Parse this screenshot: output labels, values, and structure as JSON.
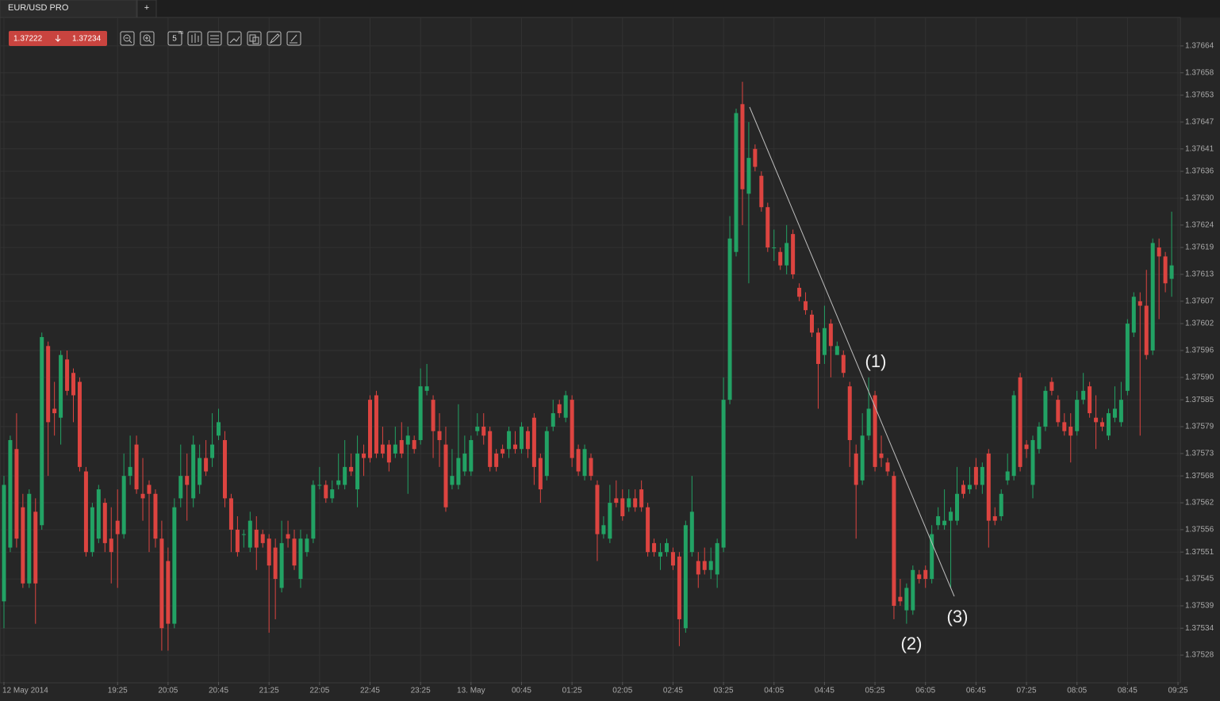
{
  "header": {
    "tab": "EUR/USD PRO",
    "new_tab": "+",
    "bid": "1.37222",
    "ask": "1.37234",
    "period_icon": "5",
    "period_unit": "m"
  },
  "chart_data": {
    "type": "candlestick",
    "up_color": "#22a264",
    "down_color": "#dc4440",
    "grid": true,
    "annotations": [
      "(1)",
      "(2)",
      "(3)"
    ],
    "ylim": [
      1.37522,
      1.3767
    ],
    "yticks": [
      1.37664,
      1.37658,
      1.37653,
      1.37647,
      1.37641,
      1.37636,
      {
        "value": 1.3763,
        "label": "1.37630"
      },
      1.37624,
      1.37619,
      1.37613,
      1.37607,
      1.37602,
      1.37596,
      {
        "value": 1.3759,
        "label": "1.37590"
      },
      1.37585,
      1.37579,
      1.37573,
      1.37568,
      1.37562,
      1.37556,
      1.37551,
      1.37545,
      1.37539,
      1.37534,
      1.37528
    ],
    "xlim": [
      -0.5,
      186.5
    ],
    "xticks": [
      {
        "value": 0,
        "label": "12 May 2014"
      },
      {
        "value": 18,
        "label": "19:25"
      },
      {
        "value": 26,
        "label": "20:05"
      },
      {
        "value": 34,
        "label": "20:45"
      },
      {
        "value": 42,
        "label": "21:25"
      },
      {
        "value": 50,
        "label": "22:05"
      },
      {
        "value": 58,
        "label": "22:45"
      },
      {
        "value": 66,
        "label": "23:25"
      },
      {
        "value": 74,
        "label": "13. May"
      },
      {
        "value": 82,
        "label": "00:45"
      },
      {
        "value": 90,
        "label": "01:25"
      },
      {
        "value": 98,
        "label": "02:05"
      },
      {
        "value": 106,
        "label": "02:45"
      },
      {
        "value": 114,
        "label": "03:25"
      },
      {
        "value": 122,
        "label": "04:05"
      },
      {
        "value": 130,
        "label": "04:45"
      },
      {
        "value": 138,
        "label": "05:25"
      },
      {
        "value": 146,
        "label": "06:05"
      },
      {
        "value": 154,
        "label": "06:45"
      },
      {
        "value": 162,
        "label": "07:25"
      },
      {
        "value": 170,
        "label": "08:05"
      },
      {
        "value": 178,
        "label": "08:45"
      },
      {
        "value": 186,
        "label": "09:25"
      }
    ],
    "ohlc": [
      [
        1.3754,
        1.37568,
        1.37534,
        1.37566
      ],
      [
        1.37552,
        1.37577,
        1.37551,
        1.37576
      ],
      [
        1.37574,
        1.37582,
        1.37552,
        1.37554
      ],
      [
        1.37561,
        1.37564,
        1.37543,
        1.37544
      ],
      [
        1.37544,
        1.37565,
        1.37543,
        1.37564
      ],
      [
        1.3756,
        1.37563,
        1.37535,
        1.37544
      ],
      [
        1.37557,
        1.376,
        1.37556,
        1.37599
      ],
      [
        1.37597,
        1.37598,
        1.37568,
        1.3758
      ],
      [
        1.37583,
        1.37589,
        1.37577,
        1.37582
      ],
      [
        1.37581,
        1.37596,
        1.37575,
        1.37595
      ],
      [
        1.37594,
        1.37596,
        1.37586,
        1.37587
      ],
      [
        1.37591,
        1.37592,
        1.3758,
        1.37586
      ],
      [
        1.37589,
        1.3759,
        1.37569,
        1.3757
      ],
      [
        1.37569,
        1.3757,
        1.3755,
        1.37551
      ],
      [
        1.37551,
        1.37562,
        1.3755,
        1.37561
      ],
      [
        1.37554,
        1.37566,
        1.37553,
        1.37565
      ],
      [
        1.37562,
        1.37563,
        1.37551,
        1.37553
      ],
      [
        1.37554,
        1.37561,
        1.37544,
        1.37551
      ],
      [
        1.37558,
        1.37565,
        1.37543,
        1.37555
      ],
      [
        1.37555,
        1.37573,
        1.37554,
        1.37568
      ],
      [
        1.37568,
        1.37577,
        1.37566,
        1.3757
      ],
      [
        1.37575,
        1.37577,
        1.37564,
        1.37565
      ],
      [
        1.37564,
        1.37572,
        1.37558,
        1.37563
      ],
      [
        1.37566,
        1.37567,
        1.37551,
        1.37564
      ],
      [
        1.37564,
        1.37565,
        1.37552,
        1.37554
      ],
      [
        1.37554,
        1.37558,
        1.37529,
        1.37534
      ],
      [
        1.37549,
        1.37552,
        1.37529,
        1.37535
      ],
      [
        1.37535,
        1.37563,
        1.37534,
        1.37561
      ],
      [
        1.37563,
        1.37575,
        1.37561,
        1.37568
      ],
      [
        1.37568,
        1.37573,
        1.37558,
        1.37566
      ],
      [
        1.37563,
        1.37577,
        1.37561,
        1.37575
      ],
      [
        1.37566,
        1.37575,
        1.37564,
        1.37572
      ],
      [
        1.37572,
        1.37576,
        1.37568,
        1.37569
      ],
      [
        1.37572,
        1.37582,
        1.3757,
        1.37575
      ],
      [
        1.37577,
        1.37583,
        1.37576,
        1.3758
      ],
      [
        1.37576,
        1.37578,
        1.37561,
        1.37563
      ],
      [
        1.37563,
        1.37564,
        1.37551,
        1.37556
      ],
      [
        1.37556,
        1.37559,
        1.3755,
        1.37551
      ],
      [
        1.37555,
        1.37556,
        1.37552,
        1.37555
      ],
      [
        1.37552,
        1.3756,
        1.37551,
        1.37558
      ],
      [
        1.37556,
        1.37559,
        1.37547,
        1.37552
      ],
      [
        1.37555,
        1.37556,
        1.37552,
        1.37553
      ],
      [
        1.37554,
        1.37555,
        1.37533,
        1.37548
      ],
      [
        1.37552,
        1.37554,
        1.37536,
        1.37545
      ],
      [
        1.37543,
        1.37558,
        1.37542,
        1.37553
      ],
      [
        1.37555,
        1.37558,
        1.37552,
        1.37554
      ],
      [
        1.37554,
        1.37556,
        1.37547,
        1.37548
      ],
      [
        1.37545,
        1.37556,
        1.37543,
        1.37554
      ],
      [
        1.37551,
        1.37555,
        1.3755,
        1.37554
      ],
      [
        1.37554,
        1.37567,
        1.37553,
        1.37566
      ],
      [
        1.37566,
        1.3757,
        1.37565,
        1.37566
      ],
      [
        1.37566,
        1.37567,
        1.37562,
        1.37563
      ],
      [
        1.37563,
        1.37567,
        1.37562,
        1.37565
      ],
      [
        1.37566,
        1.37573,
        1.37565,
        1.37567
      ],
      [
        1.37566,
        1.37576,
        1.37565,
        1.3757
      ],
      [
        1.3757,
        1.37573,
        1.37568,
        1.37569
      ],
      [
        1.37565,
        1.37577,
        1.37561,
        1.37573
      ],
      [
        1.37573,
        1.37575,
        1.37568,
        1.37572
      ],
      [
        1.37585,
        1.37586,
        1.37571,
        1.37572
      ],
      [
        1.37586,
        1.37587,
        1.37572,
        1.37573
      ],
      [
        1.37575,
        1.37579,
        1.37572,
        1.37573
      ],
      [
        1.37575,
        1.37576,
        1.37569,
        1.37571
      ],
      [
        1.37573,
        1.37579,
        1.37572,
        1.37575
      ],
      [
        1.37576,
        1.3758,
        1.37572,
        1.37573
      ],
      [
        1.37575,
        1.37579,
        1.37564,
        1.37577
      ],
      [
        1.37576,
        1.37577,
        1.37573,
        1.37574
      ],
      [
        1.37576,
        1.37592,
        1.37575,
        1.37588
      ],
      [
        1.37587,
        1.37593,
        1.37586,
        1.37588
      ],
      [
        1.37585,
        1.37586,
        1.37572,
        1.37578
      ],
      [
        1.37578,
        1.37582,
        1.3757,
        1.37576
      ],
      [
        1.37575,
        1.37579,
        1.3756,
        1.37561
      ],
      [
        1.37566,
        1.37574,
        1.37565,
        1.37568
      ],
      [
        1.37566,
        1.37584,
        1.37565,
        1.37572
      ],
      [
        1.37569,
        1.37577,
        1.37568,
        1.37573
      ],
      [
        1.37569,
        1.37577,
        1.37568,
        1.37576
      ],
      [
        1.37578,
        1.37582,
        1.37577,
        1.37579
      ],
      [
        1.37579,
        1.37582,
        1.37575,
        1.37577
      ],
      [
        1.37578,
        1.37579,
        1.37569,
        1.3757
      ],
      [
        1.37573,
        1.37574,
        1.37569,
        1.3757
      ],
      [
        1.37574,
        1.37575,
        1.37572,
        1.37573
      ],
      [
        1.37574,
        1.37579,
        1.37572,
        1.37578
      ],
      [
        1.37575,
        1.37578,
        1.37573,
        1.37574
      ],
      [
        1.37574,
        1.3758,
        1.37573,
        1.37579
      ],
      [
        1.37578,
        1.37579,
        1.37572,
        1.37574
      ],
      [
        1.37581,
        1.37582,
        1.37566,
        1.3757
      ],
      [
        1.37572,
        1.37573,
        1.37562,
        1.37565
      ],
      [
        1.37568,
        1.37579,
        1.37567,
        1.37578
      ],
      [
        1.37579,
        1.37585,
        1.37578,
        1.37582
      ],
      [
        1.37584,
        1.37585,
        1.37581,
        1.37582
      ],
      [
        1.37581,
        1.37587,
        1.3758,
        1.37586
      ],
      [
        1.37585,
        1.37586,
        1.3757,
        1.37572
      ],
      [
        1.37574,
        1.37575,
        1.37568,
        1.37569
      ],
      [
        1.37568,
        1.37575,
        1.37567,
        1.37574
      ],
      [
        1.37572,
        1.37573,
        1.37567,
        1.37568
      ],
      [
        1.37566,
        1.37567,
        1.37549,
        1.37555
      ],
      [
        1.37555,
        1.37559,
        1.37554,
        1.37557
      ],
      [
        1.37554,
        1.37566,
        1.37553,
        1.37562
      ],
      [
        1.37563,
        1.37567,
        1.37561,
        1.37562
      ],
      [
        1.37563,
        1.37565,
        1.37558,
        1.37559
      ],
      [
        1.37561,
        1.37565,
        1.3756,
        1.37563
      ],
      [
        1.37563,
        1.37565,
        1.3756,
        1.37561
      ],
      [
        1.37565,
        1.37567,
        1.3756,
        1.37561
      ],
      [
        1.37561,
        1.37562,
        1.3755,
        1.37551
      ],
      [
        1.37553,
        1.37554,
        1.3755,
        1.37551
      ],
      [
        1.3755,
        1.37553,
        1.37547,
        1.37551
      ],
      [
        1.37551,
        1.37554,
        1.3755,
        1.37553
      ],
      [
        1.37551,
        1.37552,
        1.37547,
        1.37548
      ],
      [
        1.3755,
        1.37551,
        1.3753,
        1.37536
      ],
      [
        1.37534,
        1.37558,
        1.37533,
        1.37557
      ],
      [
        1.37551,
        1.37568,
        1.3755,
        1.3756
      ],
      [
        1.37549,
        1.37551,
        1.37543,
        1.37546
      ],
      [
        1.37549,
        1.37552,
        1.37546,
        1.37547
      ],
      [
        1.37547,
        1.37552,
        1.37545,
        1.37549
      ],
      [
        1.37546,
        1.37554,
        1.37543,
        1.37553
      ],
      [
        1.37552,
        1.3759,
        1.37551,
        1.37585
      ],
      [
        1.37585,
        1.37626,
        1.37584,
        1.37621
      ],
      [
        1.37618,
        1.3765,
        1.37617,
        1.37649
      ],
      [
        1.37651,
        1.37656,
        1.37624,
        1.37632
      ],
      [
        1.37631,
        1.37647,
        1.37611,
        1.37639
      ],
      [
        1.37641,
        1.37642,
        1.37636,
        1.37637
      ],
      [
        1.37635,
        1.37636,
        1.37627,
        1.37628
      ],
      [
        1.37628,
        1.37629,
        1.37618,
        1.37619
      ],
      [
        1.37619,
        1.37623,
        1.37616,
        1.37619
      ],
      [
        1.37618,
        1.37619,
        1.37614,
        1.37615
      ],
      [
        1.37615,
        1.37624,
        1.37613,
        1.3762
      ],
      [
        1.37622,
        1.37623,
        1.37612,
        1.37613
      ],
      [
        1.3761,
        1.37611,
        1.37607,
        1.37608
      ],
      [
        1.37607,
        1.37609,
        1.37604,
        1.37605
      ],
      [
        1.37604,
        1.37605,
        1.37599,
        1.376
      ],
      [
        1.376,
        1.37601,
        1.37583,
        1.37593
      ],
      [
        1.37595,
        1.37606,
        1.37593,
        1.37601
      ],
      [
        1.37602,
        1.37603,
        1.3759,
        1.37597
      ],
      [
        1.37595,
        1.37598,
        1.37595,
        1.37597
      ],
      [
        1.37595,
        1.37596,
        1.3759,
        1.37591
      ],
      [
        1.37588,
        1.37589,
        1.3757,
        1.37576
      ],
      [
        1.37573,
        1.37575,
        1.37554,
        1.37566
      ],
      [
        1.37567,
        1.37582,
        1.37566,
        1.37577
      ],
      [
        1.37577,
        1.3759,
        1.37576,
        1.37583
      ],
      [
        1.37586,
        1.37587,
        1.37569,
        1.3757
      ],
      [
        1.37573,
        1.37577,
        1.3757,
        1.37572
      ],
      [
        1.37571,
        1.37572,
        1.37568,
        1.37569
      ],
      [
        1.37568,
        1.37569,
        1.37536,
        1.37539
      ],
      [
        1.37541,
        1.37545,
        1.37539,
        1.3754
      ],
      [
        1.37538,
        1.37544,
        1.37535,
        1.37543
      ],
      [
        1.37538,
        1.37548,
        1.37537,
        1.37547
      ],
      [
        1.37546,
        1.37547,
        1.37544,
        1.37545
      ],
      [
        1.37547,
        1.37548,
        1.37543,
        1.37545
      ],
      [
        1.37545,
        1.37557,
        1.37544,
        1.37555
      ],
      [
        1.37557,
        1.37561,
        1.37556,
        1.37559
      ],
      [
        1.37557,
        1.37565,
        1.37556,
        1.37558
      ],
      [
        1.37558,
        1.37561,
        1.37543,
        1.3756
      ],
      [
        1.37558,
        1.3757,
        1.37557,
        1.37564
      ],
      [
        1.37566,
        1.37567,
        1.37563,
        1.37564
      ],
      [
        1.37565,
        1.3757,
        1.37564,
        1.37566
      ],
      [
        1.3757,
        1.37572,
        1.37565,
        1.37566
      ],
      [
        1.37566,
        1.37571,
        1.37564,
        1.3757
      ],
      [
        1.37573,
        1.37574,
        1.37552,
        1.37558
      ],
      [
        1.37559,
        1.37561,
        1.37557,
        1.37558
      ],
      [
        1.37559,
        1.37565,
        1.37558,
        1.37564
      ],
      [
        1.37567,
        1.37573,
        1.37566,
        1.37569
      ],
      [
        1.37568,
        1.37587,
        1.37567,
        1.37586
      ],
      [
        1.3759,
        1.37591,
        1.37569,
        1.3757
      ],
      [
        1.37575,
        1.37576,
        1.37572,
        1.37574
      ],
      [
        1.37566,
        1.37577,
        1.37563,
        1.37576
      ],
      [
        1.37574,
        1.3758,
        1.37573,
        1.37579
      ],
      [
        1.37579,
        1.37588,
        1.37578,
        1.37587
      ],
      [
        1.37589,
        1.3759,
        1.37586,
        1.37587
      ],
      [
        1.37585,
        1.37586,
        1.37579,
        1.3758
      ],
      [
        1.3758,
        1.37582,
        1.37577,
        1.37578
      ],
      [
        1.37579,
        1.37582,
        1.37571,
        1.37577
      ],
      [
        1.37578,
        1.37587,
        1.37577,
        1.37585
      ],
      [
        1.37585,
        1.37591,
        1.37584,
        1.37587
      ],
      [
        1.37588,
        1.37589,
        1.37581,
        1.37582
      ],
      [
        1.37581,
        1.37586,
        1.37574,
        1.3758
      ],
      [
        1.3758,
        1.37581,
        1.37578,
        1.37579
      ],
      [
        1.37577,
        1.37583,
        1.37576,
        1.37582
      ],
      [
        1.37581,
        1.37588,
        1.3758,
        1.37583
      ],
      [
        1.3758,
        1.37589,
        1.37579,
        1.37585
      ],
      [
        1.37587,
        1.37603,
        1.37586,
        1.37602
      ],
      [
        1.376,
        1.37609,
        1.37599,
        1.37608
      ],
      [
        1.37607,
        1.37609,
        1.37577,
        1.37606
      ],
      [
        1.37606,
        1.37614,
        1.37594,
        1.37595
      ],
      [
        1.37596,
        1.37621,
        1.37595,
        1.3762
      ],
      [
        1.37619,
        1.37621,
        1.37603,
        1.37617
      ],
      [
        1.37617,
        1.37618,
        1.37609,
        1.37611
      ],
      [
        1.37612,
        1.37627,
        1.37608,
        1.37615
      ]
    ]
  }
}
